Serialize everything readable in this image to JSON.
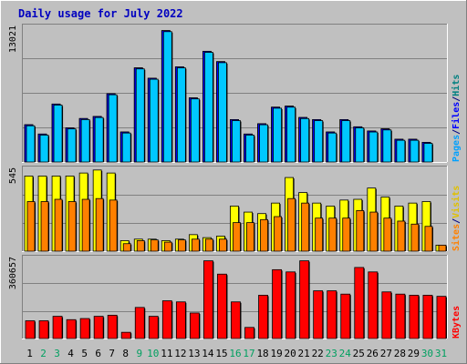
{
  "chart_data": {
    "type": "bar",
    "title": "Daily usage for July 2022",
    "categories": [
      "1",
      "2",
      "3",
      "4",
      "5",
      "6",
      "7",
      "8",
      "9",
      "10",
      "11",
      "12",
      "13",
      "14",
      "15",
      "16",
      "17",
      "18",
      "19",
      "20",
      "21",
      "22",
      "23",
      "24",
      "25",
      "26",
      "27",
      "28",
      "29",
      "30",
      "31"
    ],
    "weekend_days": [
      "2",
      "3",
      "9",
      "10",
      "16",
      "17",
      "23",
      "24",
      "30",
      "31"
    ],
    "panels": [
      {
        "id": "top",
        "max_label": "13021",
        "legend": [
          {
            "text": "Pages",
            "color": "#00a0ff"
          },
          {
            "text": "/",
            "color": "#000080"
          },
          {
            "text": "Files",
            "color": "#0000ff"
          },
          {
            "text": "/",
            "color": "#000080"
          },
          {
            "text": "Hits",
            "color": "#008080"
          }
        ],
        "ylim": [
          0,
          13021
        ],
        "series": [
          {
            "name": "Hits",
            "color": "#008080",
            "values": [
              3600,
              2700,
              5600,
              3300,
              4200,
              4400,
              6600,
              2900,
              9100,
              8100,
              12700,
              9200,
              6200,
              10700,
              9700,
              4100,
              2700,
              3700,
              5300,
              5400,
              4300,
              4100,
              2900,
              4100,
              3400,
              3000,
              3200,
              2200,
              2200,
              1900,
              0
            ]
          },
          {
            "name": "Files",
            "color": "#0000ff",
            "values": [
              3600,
              2700,
              5600,
              3300,
              4200,
              4400,
              6600,
              2900,
              9100,
              8100,
              12700,
              9200,
              6200,
              10700,
              9700,
              4100,
              2700,
              3700,
              5300,
              5400,
              4300,
              4100,
              2900,
              4100,
              3400,
              3000,
              3200,
              2200,
              2200,
              1900,
              0
            ]
          },
          {
            "name": "Pages",
            "color": "#00c8ff",
            "values": [
              3500,
              2600,
              5500,
              3200,
              4100,
              4300,
              6500,
              2800,
              9000,
              8000,
              12600,
              9100,
              6100,
              10600,
              9600,
              4000,
              2600,
              3600,
              5200,
              5300,
              4200,
              4000,
              2800,
              4000,
              3300,
              2900,
              3100,
              2100,
              2100,
              1800,
              0
            ]
          }
        ]
      },
      {
        "id": "middle",
        "max_label": "545",
        "legend": [
          {
            "text": "Sites",
            "color": "#ff8000"
          },
          {
            "text": "/",
            "color": "#000080"
          },
          {
            "text": "Visits",
            "color": "#e0c000"
          }
        ],
        "ylim": [
          0,
          545
        ],
        "series": [
          {
            "name": "Visits",
            "color": "#ffff00",
            "values": [
              500,
              500,
              500,
              500,
              520,
              540,
              520,
              70,
              80,
              80,
              70,
              80,
              110,
              90,
              100,
              300,
              260,
              250,
              320,
              490,
              390,
              320,
              300,
              340,
              345,
              420,
              360,
              300,
              320,
              330,
              40
            ]
          },
          {
            "name": "Sites",
            "color": "#ff8000",
            "values": [
              330,
              330,
              345,
              330,
              345,
              350,
              340,
              50,
              70,
              75,
              60,
              75,
              80,
              80,
              80,
              190,
              190,
              210,
              230,
              350,
              320,
              220,
              220,
              220,
              270,
              260,
              220,
              200,
              180,
              165,
              40
            ]
          }
        ]
      },
      {
        "id": "bottom",
        "max_label": "360657",
        "legend": [
          {
            "text": "KBytes",
            "color": "#ff0000"
          }
        ],
        "ylim": [
          0,
          360657
        ],
        "series": [
          {
            "name": "KBytes",
            "color": "#ff0000",
            "values": [
              80000,
              80000,
              100000,
              85000,
              90000,
              100000,
              105000,
              28000,
              140000,
              100000,
              170000,
              165000,
              115000,
              350000,
              290000,
              165000,
              50000,
              195000,
              310000,
              300000,
              350000,
              215000,
              215000,
              200000,
              320000,
              300000,
              210000,
              200000,
              195000,
              195000,
              190000
            ]
          }
        ]
      }
    ]
  }
}
